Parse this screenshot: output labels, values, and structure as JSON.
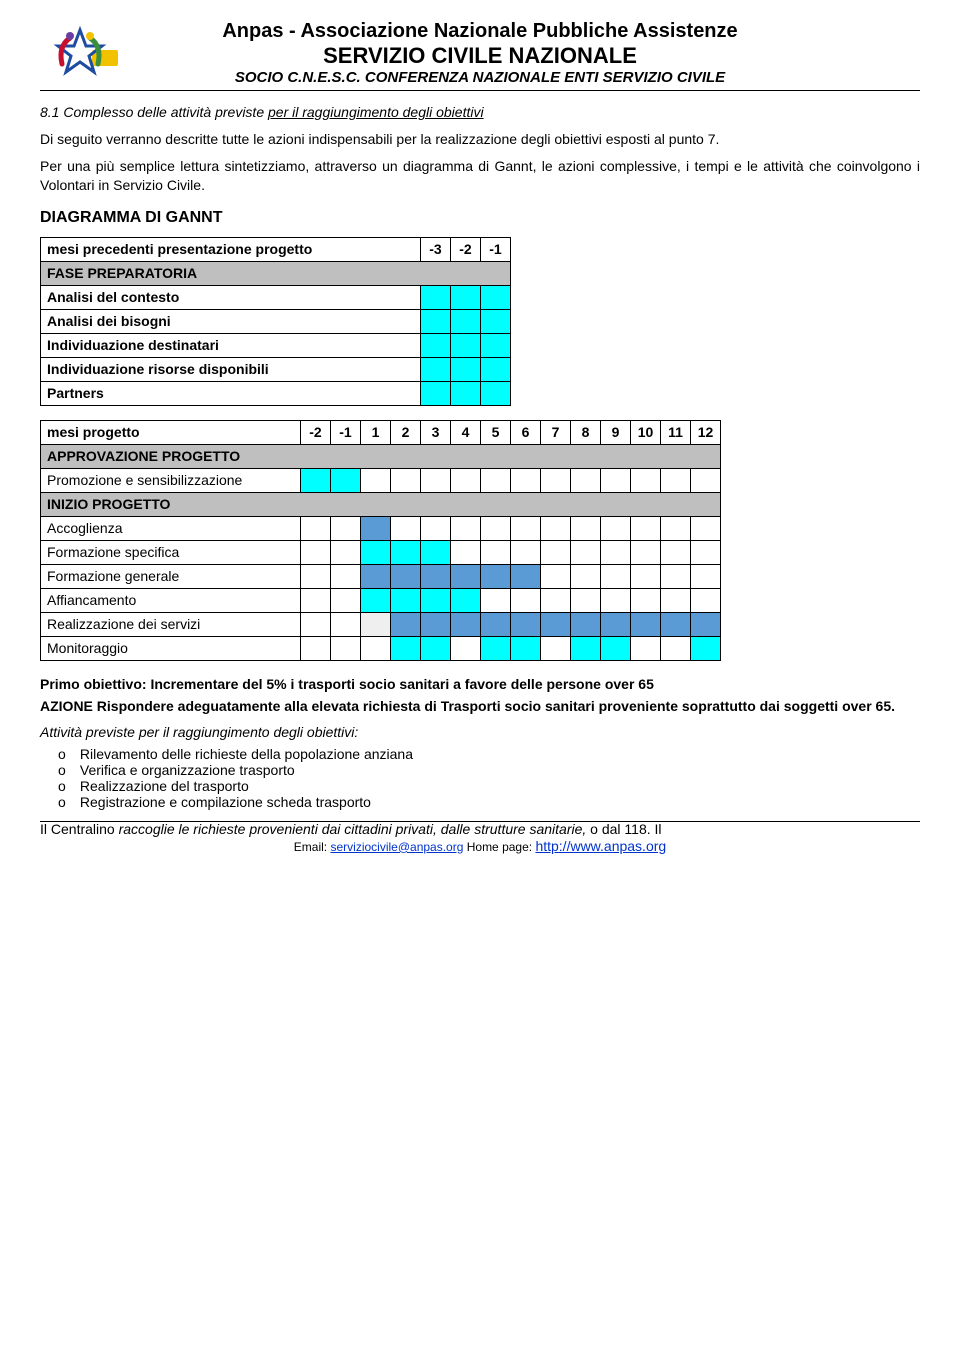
{
  "header": {
    "org": "Anpas - Associazione Nazionale Pubbliche Assistenze",
    "service": "SERVIZIO CIVILE NAZIONALE",
    "sub": "SOCIO C.N.E.S.C. CONFERENZA NAZIONALE ENTI SERVIZIO CIVILE"
  },
  "logo": {
    "colors": [
      "#c8102e",
      "#3b8e3f",
      "#1e4ca0",
      "#f2c200",
      "#6a3fa0"
    ],
    "bg_box": "#f2c200"
  },
  "section": {
    "number": "8.1 Complesso delle attività previste ",
    "title_underlined": "per il raggiungimento degli obiettivi",
    "para1": "Di seguito verranno descritte tutte le azioni indispensabili per la realizzazione degli obiettivi esposti al punto 7.",
    "para2": "Per una più semplice lettura sintetizziamo, attraverso un diagramma di Gannt, le azioni complessive, i tempi e le attività che coinvolgono i Volontari in Servizio Civile.",
    "diagram_title": "DIAGRAMMA DI GANNT"
  },
  "colors": {
    "cyan": "#00ffff",
    "blue": "#5b9bd5",
    "section_bg": "#bfbfbf",
    "border": "#000000",
    "lightgray": "#efefef"
  },
  "table1": {
    "header_label": "mesi precedenti presentazione progetto",
    "months": [
      "-3",
      "-2",
      "-1"
    ],
    "section_row": "FASE PREPARATORIA",
    "rows": [
      {
        "label": "Analisi del contesto",
        "fill": [
          "cyan",
          "cyan",
          "cyan"
        ]
      },
      {
        "label": "Analisi dei bisogni",
        "fill": [
          "cyan",
          "cyan",
          "cyan"
        ]
      },
      {
        "label": "Individuazione destinatari",
        "fill": [
          "cyan",
          "cyan",
          "cyan"
        ]
      },
      {
        "label": "Individuazione risorse disponibili",
        "fill": [
          "cyan",
          "cyan",
          "cyan"
        ]
      },
      {
        "label": "Partners",
        "fill": [
          "cyan",
          "cyan",
          "cyan"
        ]
      }
    ]
  },
  "table2": {
    "header_label": "mesi progetto",
    "months": [
      "-2",
      "-1",
      "1",
      "2",
      "3",
      "4",
      "5",
      "6",
      "7",
      "8",
      "9",
      "10",
      "11",
      "12"
    ],
    "section_row_1": "APPROVAZIONE PROGETTO",
    "rows_a": [
      {
        "label": "Promozione e sensibilizzazione",
        "bold": false,
        "fill": [
          "cyan",
          "cyan",
          "",
          "",
          "",
          "",
          "",
          "",
          "",
          "",
          "",
          "",
          "",
          ""
        ]
      }
    ],
    "section_row_2": "INIZIO PROGETTO",
    "rows_b": [
      {
        "label": "Accoglienza",
        "bold": false,
        "fill": [
          "",
          "",
          "blue",
          "",
          "",
          "",
          "",
          "",
          "",
          "",
          "",
          "",
          "",
          ""
        ]
      },
      {
        "label": "Formazione specifica",
        "bold": false,
        "fill": [
          "",
          "",
          "cyan",
          "cyan",
          "cyan",
          "",
          "",
          "",
          "",
          "",
          "",
          "",
          "",
          ""
        ]
      },
      {
        "label": "Formazione generale",
        "bold": false,
        "fill": [
          "",
          "",
          "blue",
          "blue",
          "blue",
          "blue",
          "blue",
          "blue",
          "",
          "",
          "",
          "",
          "",
          ""
        ]
      },
      {
        "label": "Affiancamento",
        "bold": false,
        "fill": [
          "",
          "",
          "cyan",
          "cyan",
          "cyan",
          "cyan",
          "",
          "",
          "",
          "",
          "",
          "",
          "",
          ""
        ]
      },
      {
        "label": "Realizzazione dei servizi",
        "bold": false,
        "fill": [
          "",
          "",
          "ltgray",
          "blue",
          "blue",
          "blue",
          "blue",
          "blue",
          "blue",
          "blue",
          "blue",
          "blue",
          "blue",
          "blue"
        ]
      },
      {
        "label": "Monitoraggio",
        "bold": false,
        "fill": [
          "",
          "",
          "",
          "cyan",
          "cyan",
          "",
          "cyan",
          "cyan",
          "",
          "cyan",
          "cyan",
          "",
          "",
          "cyan"
        ]
      }
    ]
  },
  "objective": {
    "line1": "Primo obiettivo: Incrementare del 5% i trasporti socio sanitari  a favore delle persone over 65",
    "line2_prefix": "AZIONE   ",
    "line2": "Rispondere adeguatamente alla elevata richiesta di Trasporti socio sanitari proveniente soprattutto dai soggetti over 65.",
    "subhead": "Attività previste per il raggiungimento degli obiettivi:",
    "bullets": [
      "Rilevamento delle richieste della popolazione anziana",
      "Verifica e organizzazione trasporto",
      "Realizzazione del trasporto",
      "Registrazione e compilazione scheda trasporto"
    ]
  },
  "footer": {
    "pre_text": "Il Centralino ",
    "struck": "raccoglie le richieste provenienti dai cittadini privati, dalle strutture sanitarie,",
    "post_text": " o dal 118. Il",
    "line2_pre": "Email: ",
    "email": "serviziocivile@anpas.org",
    "line2_mid": " Home page: ",
    "url": "http://www.anpas.org"
  }
}
